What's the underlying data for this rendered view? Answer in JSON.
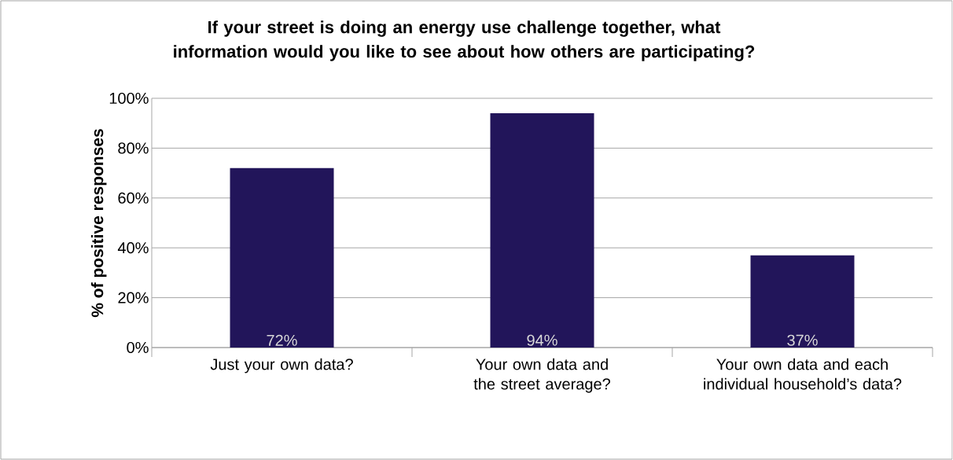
{
  "chart_data": {
    "type": "bar",
    "title": "If your street is doing an energy use challenge together, what information would you like to see about how others are participating?",
    "ylabel": "% of positive responses",
    "categories": [
      "Just your own data?",
      "Your own data and the street average?",
      "Your own data and each individual household’s data?"
    ],
    "values": [
      72,
      94,
      37
    ],
    "value_labels": [
      "72%",
      "94%",
      "37%"
    ],
    "color": "#22155a",
    "ylim": [
      0,
      100
    ],
    "yticks": [
      {
        "value": 0,
        "label": "0%"
      },
      {
        "value": 20,
        "label": "20%"
      },
      {
        "value": 40,
        "label": "40%"
      },
      {
        "value": 60,
        "label": "60%"
      },
      {
        "value": 80,
        "label": "80%"
      },
      {
        "value": 100,
        "label": "100%"
      }
    ],
    "grid": "y"
  }
}
